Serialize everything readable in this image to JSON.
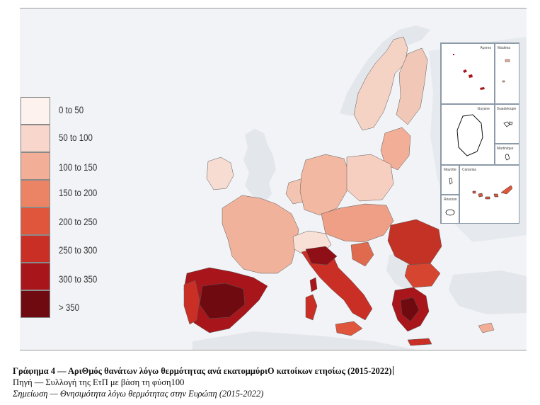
{
  "legend": {
    "items": [
      {
        "label": "0 to 50",
        "color": "#fdf2ee"
      },
      {
        "label": "50 to 100",
        "color": "#f8d6cc"
      },
      {
        "label": "100 to 150",
        "color": "#f2ae96"
      },
      {
        "label": "150 to 200",
        "color": "#ea8465"
      },
      {
        "label": "200 to 250",
        "color": "#e0563c"
      },
      {
        "label": "250 to 300",
        "color": "#c92f25"
      },
      {
        "label": "300 to 350",
        "color": "#a8151a"
      },
      {
        "label": "> 350",
        "color": "#6e0a10"
      }
    ]
  },
  "insets": {
    "labels": [
      "Açores",
      "Madeira",
      "Guyane",
      "Guadeloupe",
      "Martinique",
      "Mayotte",
      "Canarias",
      "Réunion"
    ]
  },
  "caption": {
    "title": "Γράφημα 4 — ΑριΘμός θανάτων λόγω θερμότητας ανά εκατομμύριΟ κατοίκων ετησίως (2015-2022)",
    "source": "Πηγή — Συλλογή της ΕτΠ με βάση τη φύση100",
    "note": "Σημείωση — Θνησιμότητα λόγω θερμότητας στην Ευρώπη (2015-2022)"
  },
  "colors": {
    "sea": "#f1f3f6",
    "non_eu_land": "#e3e6ea",
    "border": "#111111"
  }
}
